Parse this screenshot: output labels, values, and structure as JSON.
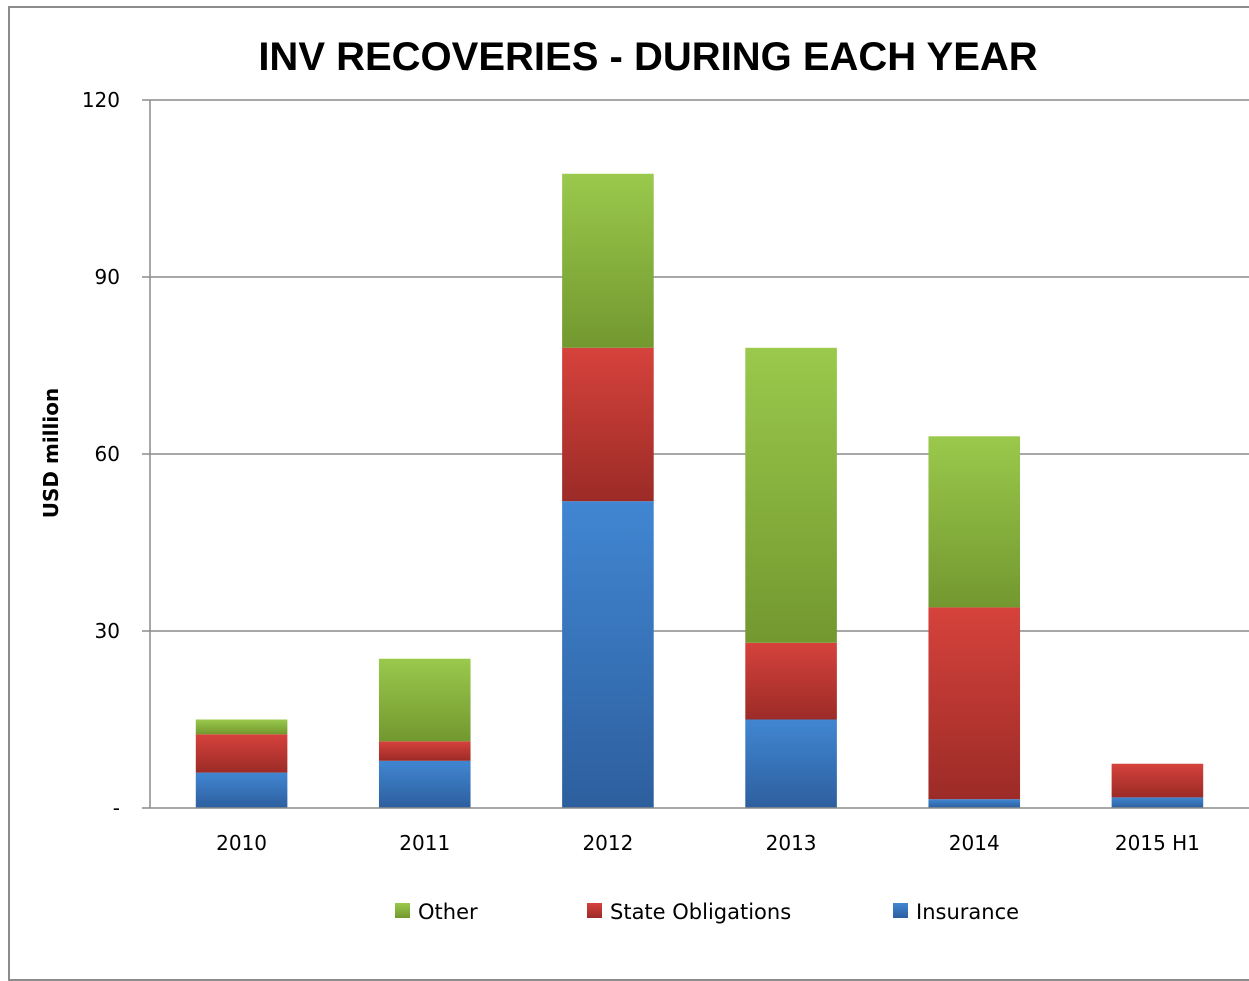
{
  "chart_data": {
    "type": "bar",
    "stacked": true,
    "title": "INV RECOVERIES - DURING EACH YEAR",
    "ylabel": "USD million",
    "xlabel": "",
    "ylim": [
      0,
      120
    ],
    "yticks": [
      {
        "value": 0,
        "label": "-"
      },
      {
        "value": 30,
        "label": "30"
      },
      {
        "value": 60,
        "label": "60"
      },
      {
        "value": 90,
        "label": "90"
      },
      {
        "value": 120,
        "label": "120"
      }
    ],
    "grid": true,
    "legend_position": "bottom",
    "categories": [
      "2010",
      "2011",
      "2012",
      "2013",
      "2014",
      "2015 H1"
    ],
    "series": [
      {
        "name": "Insurance",
        "color": "#3b7ac6",
        "values": [
          6,
          8,
          52,
          15,
          1.5,
          1.8
        ]
      },
      {
        "name": "State Obligations",
        "color": "#c83a34",
        "values": [
          6.5,
          3.3,
          26,
          13,
          32.5,
          5.7
        ]
      },
      {
        "name": "Other",
        "color": "#8cb843",
        "values": [
          2.5,
          14,
          29.5,
          50,
          29,
          0
        ]
      }
    ],
    "legend_order": [
      "Other",
      "State Obligations",
      "Insurance"
    ]
  }
}
